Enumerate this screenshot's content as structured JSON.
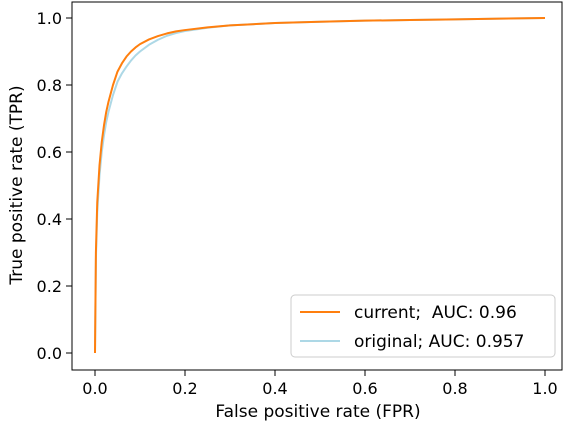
{
  "chart_data": {
    "type": "line",
    "title": "",
    "xlabel": "False positive rate (FPR)",
    "ylabel": "True positive rate (TPR)",
    "xlim": [
      0.0,
      1.0
    ],
    "ylim": [
      0.0,
      1.0
    ],
    "xticks": [
      "0.0",
      "0.2",
      "0.4",
      "0.6",
      "0.8",
      "1.0"
    ],
    "yticks": [
      "0.0",
      "0.2",
      "0.4",
      "0.6",
      "0.8",
      "1.0"
    ],
    "grid": false,
    "legend_position": "bottom-right",
    "series": [
      {
        "name": "current;  AUC: 0.96",
        "color": "#ff7f0e",
        "x": [
          0.0,
          0.002,
          0.005,
          0.01,
          0.015,
          0.02,
          0.025,
          0.03,
          0.04,
          0.05,
          0.06,
          0.07,
          0.08,
          0.09,
          0.1,
          0.12,
          0.14,
          0.16,
          0.18,
          0.2,
          0.25,
          0.3,
          0.4,
          0.5,
          0.6,
          0.7,
          0.8,
          0.9,
          1.0
        ],
        "y": [
          0.0,
          0.3,
          0.45,
          0.56,
          0.63,
          0.68,
          0.72,
          0.75,
          0.8,
          0.84,
          0.865,
          0.885,
          0.9,
          0.912,
          0.922,
          0.936,
          0.946,
          0.954,
          0.96,
          0.964,
          0.972,
          0.978,
          0.985,
          0.989,
          0.992,
          0.994,
          0.996,
          0.998,
          1.0
        ]
      },
      {
        "name": "original; AUC: 0.957",
        "color": "#add8e6",
        "x": [
          0.0,
          0.002,
          0.005,
          0.01,
          0.015,
          0.02,
          0.025,
          0.03,
          0.04,
          0.05,
          0.06,
          0.07,
          0.08,
          0.09,
          0.1,
          0.12,
          0.14,
          0.16,
          0.18,
          0.2,
          0.25,
          0.3,
          0.4,
          0.5,
          0.6,
          0.7,
          0.8,
          0.9,
          1.0
        ],
        "y": [
          0.0,
          0.28,
          0.42,
          0.53,
          0.6,
          0.65,
          0.69,
          0.72,
          0.77,
          0.81,
          0.835,
          0.855,
          0.873,
          0.888,
          0.9,
          0.92,
          0.935,
          0.947,
          0.955,
          0.961,
          0.971,
          0.978,
          0.985,
          0.989,
          0.992,
          0.994,
          0.996,
          0.998,
          1.0
        ]
      }
    ]
  }
}
